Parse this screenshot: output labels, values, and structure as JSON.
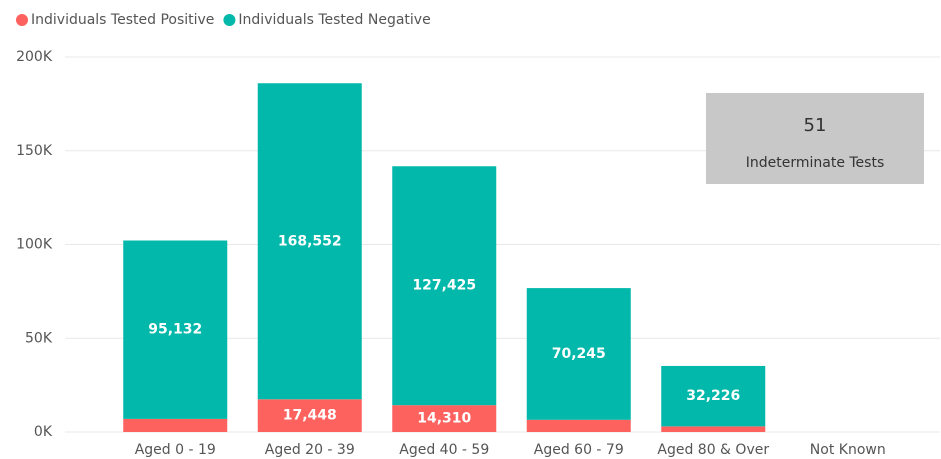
{
  "chart_data": {
    "type": "stacked_bar",
    "categories": [
      "Aged 0 - 19",
      "Aged 20 - 39",
      "Aged 40 - 59",
      "Aged 60 - 79",
      "Aged 80 & Over",
      "Not Known"
    ],
    "series": [
      {
        "name": "Individuals Tested Positive",
        "color": "#fd625e",
        "values": [
          7000,
          17448,
          14310,
          6500,
          3000,
          null
        ],
        "value_labels": [
          null,
          "17,448",
          "14,310",
          null,
          null,
          null
        ]
      },
      {
        "name": "Individuals Tested Negative",
        "color": "#01b8aa",
        "values": [
          95132,
          168552,
          127425,
          70245,
          32226,
          null
        ],
        "value_labels": [
          "95,132",
          "168,552",
          "127,425",
          "70,245",
          "32,226",
          null
        ]
      }
    ],
    "ylim": [
      0,
      200000
    ],
    "yticks": [
      {
        "value": 0,
        "label": "0K"
      },
      {
        "value": 50000,
        "label": "50K"
      },
      {
        "value": 100000,
        "label": "100K"
      },
      {
        "value": 150000,
        "label": "150K"
      },
      {
        "value": 200000,
        "label": "200K"
      }
    ],
    "grid": true,
    "legend": "top-left",
    "card": {
      "value": 51,
      "label": "Indeterminate Tests"
    }
  }
}
